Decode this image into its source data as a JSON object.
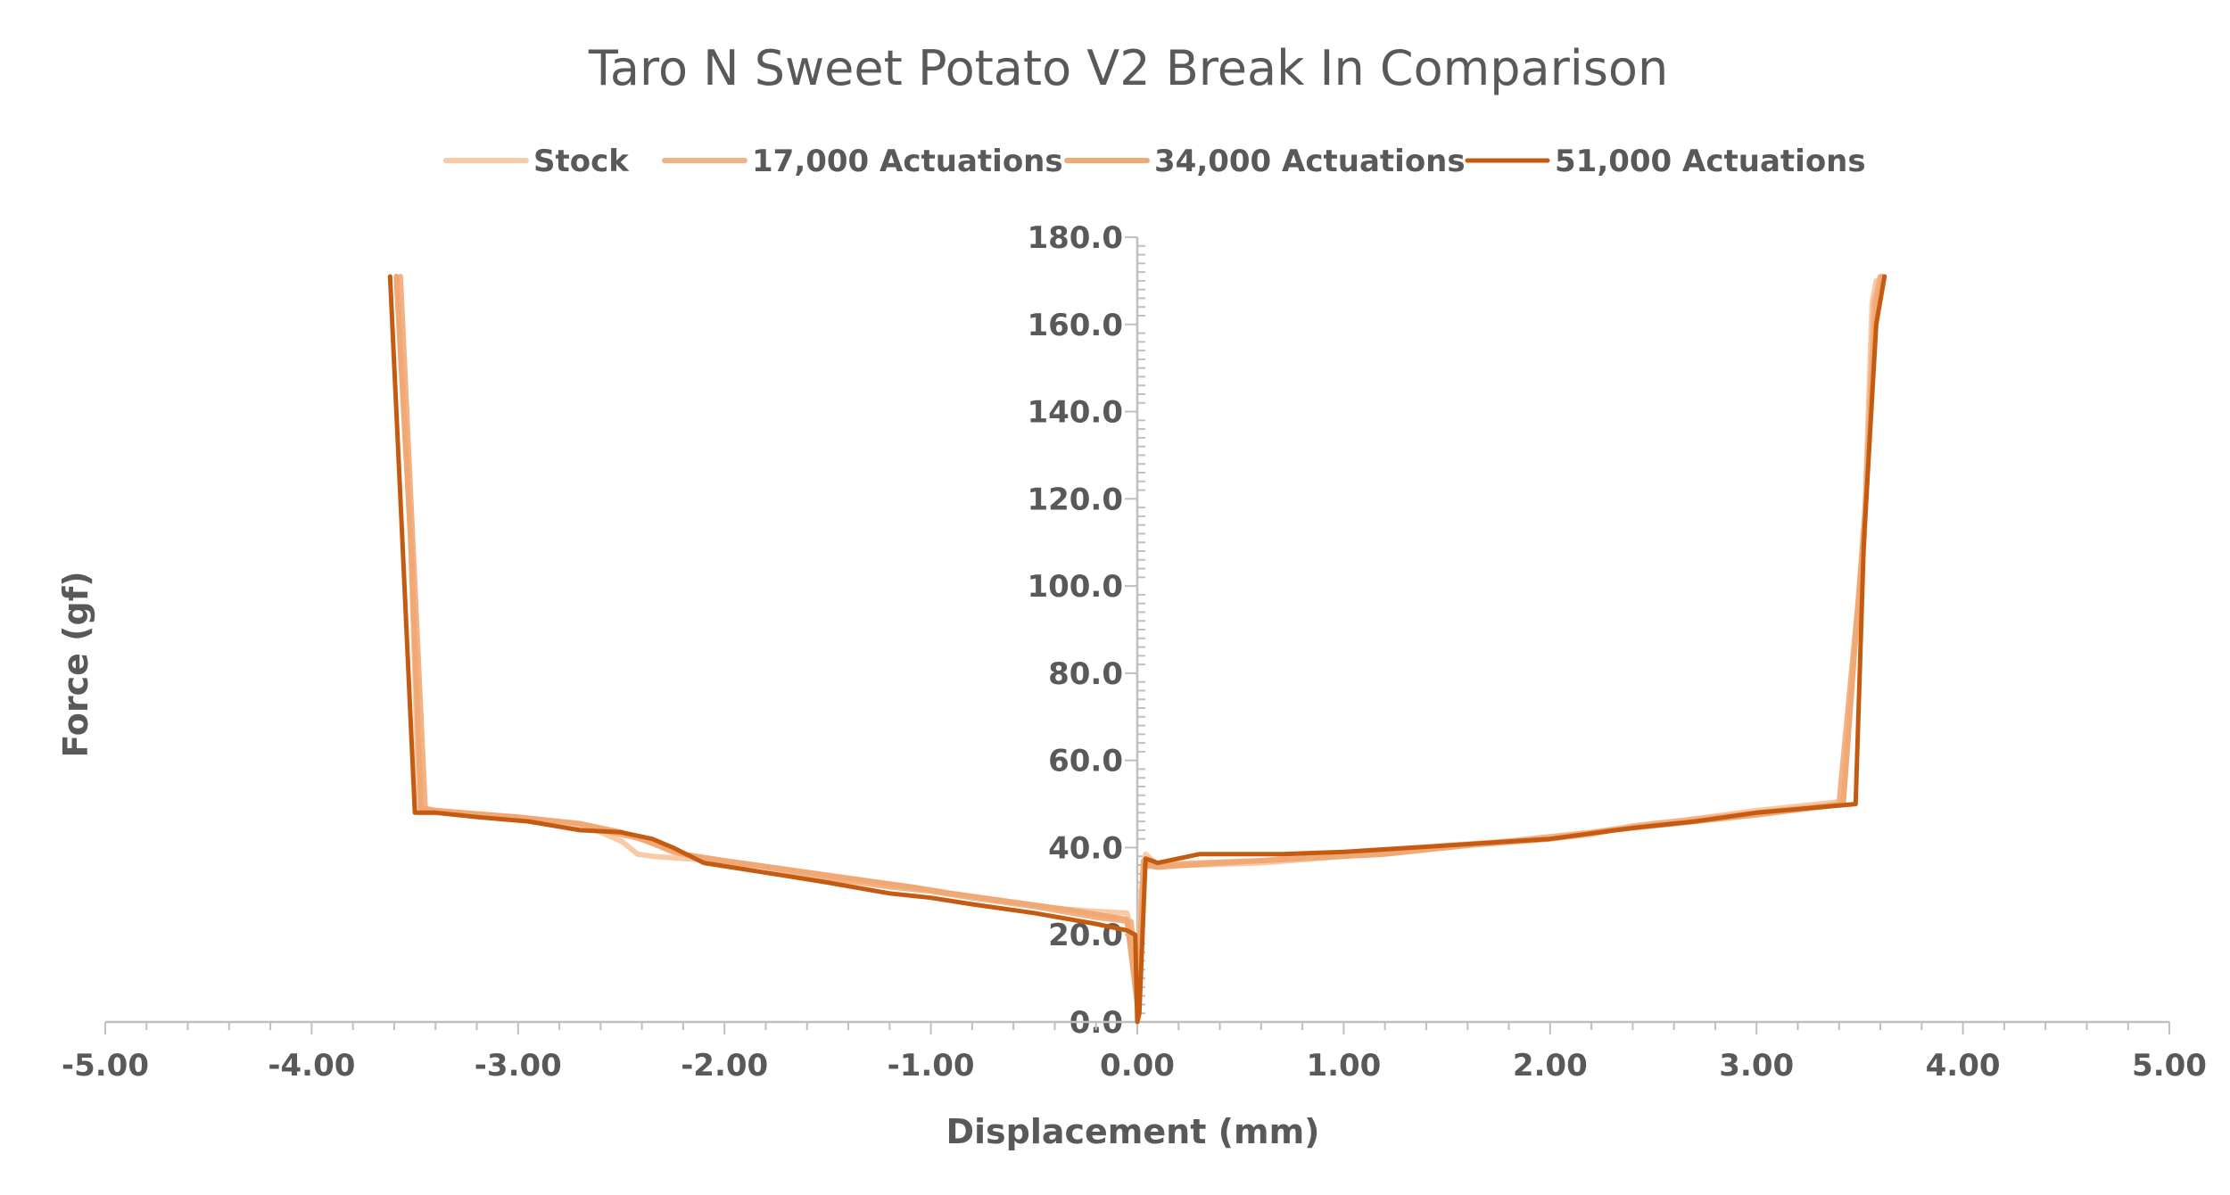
{
  "chart_data": {
    "type": "line",
    "title": "Taro N Sweet Potato V2 Break In Comparison",
    "xlabel": "Displacement (mm)",
    "ylabel": "Force (gf)",
    "xlim": [
      -5.0,
      5.0
    ],
    "ylim": [
      0.0,
      180.0
    ],
    "x_ticks": [
      -5.0,
      -4.0,
      -3.0,
      -2.0,
      -1.0,
      0.0,
      1.0,
      2.0,
      3.0,
      4.0,
      5.0
    ],
    "x_tick_labels": [
      "-5.00",
      "-4.00",
      "-3.00",
      "-2.00",
      "-1.00",
      "0.00",
      "1.00",
      "2.00",
      "3.00",
      "4.00",
      "5.00"
    ],
    "y_ticks": [
      0,
      20,
      40,
      60,
      80,
      100,
      120,
      140,
      160,
      180
    ],
    "y_tick_labels": [
      "0.0",
      "20.0",
      "40.0",
      "60.0",
      "80.0",
      "100.0",
      "120.0",
      "140.0",
      "160.0",
      "180.0"
    ],
    "grid": false,
    "legend_position": "top",
    "series": [
      {
        "name": "Stock",
        "color": "#f8cba6",
        "line_width": 6,
        "x": [
          -3.58,
          -3.52,
          -3.48,
          -3.4,
          -3.2,
          -2.9,
          -2.7,
          -2.6,
          -2.5,
          -2.42,
          -2.35,
          -2.2,
          -2.0,
          -1.8,
          -1.5,
          -1.2,
          -1.0,
          -0.8,
          -0.5,
          -0.25,
          -0.05,
          -0.02,
          0.0,
          0.02,
          0.04,
          0.1,
          0.3,
          0.6,
          1.0,
          1.5,
          1.8,
          2.0,
          2.2,
          2.4,
          2.6,
          3.0,
          3.4,
          3.52,
          3.56,
          3.58
        ],
        "y": [
          170.0,
          110.0,
          48.0,
          48.0,
          47.5,
          46.5,
          45.0,
          43.5,
          41.5,
          38.5,
          38.0,
          37.5,
          37.0,
          35.5,
          33.0,
          31.0,
          30.0,
          28.5,
          26.5,
          25.5,
          25.0,
          20.0,
          6.0,
          30.0,
          38.5,
          36.0,
          36.0,
          36.5,
          38.0,
          40.5,
          41.5,
          42.0,
          43.0,
          45.0,
          46.0,
          48.5,
          50.5,
          110.0,
          165.0,
          170.0
        ]
      },
      {
        "name": "17,000 Actuations",
        "color": "#f4b183",
        "line_width": 6,
        "x": [
          -3.57,
          -3.5,
          -3.45,
          -3.4,
          -3.0,
          -2.7,
          -2.6,
          -2.4,
          -2.25,
          -2.1,
          -1.8,
          -1.5,
          -1.2,
          -1.0,
          -0.8,
          -0.5,
          -0.2,
          -0.03,
          0.0,
          0.03,
          0.1,
          0.3,
          0.6,
          1.0,
          1.5,
          2.0,
          2.2,
          2.5,
          3.0,
          3.4,
          3.52,
          3.57,
          3.6
        ],
        "y": [
          171.0,
          100.0,
          49.0,
          48.5,
          47.0,
          45.5,
          44.0,
          42.0,
          39.0,
          37.5,
          35.5,
          33.0,
          31.0,
          30.0,
          28.5,
          26.5,
          24.0,
          23.0,
          5.0,
          37.0,
          36.0,
          36.5,
          37.0,
          38.5,
          40.0,
          42.5,
          43.5,
          45.5,
          48.0,
          50.0,
          110.0,
          165.0,
          171.0
        ]
      },
      {
        "name": "34,000 Actuations",
        "color": "#f0a875",
        "line_width": 6,
        "x": [
          -3.59,
          -3.52,
          -3.47,
          -3.4,
          -3.0,
          -2.7,
          -2.5,
          -2.35,
          -2.2,
          -2.0,
          -1.7,
          -1.4,
          -1.1,
          -0.9,
          -0.6,
          -0.3,
          -0.05,
          0.0,
          0.03,
          0.1,
          0.4,
          0.8,
          1.2,
          1.6,
          2.0,
          2.3,
          2.6,
          3.0,
          3.42,
          3.53,
          3.58,
          3.61
        ],
        "y": [
          171.0,
          110.0,
          49.0,
          48.5,
          47.0,
          45.5,
          43.5,
          41.0,
          38.5,
          37.0,
          35.0,
          33.0,
          31.0,
          29.5,
          27.5,
          25.5,
          23.5,
          4.0,
          36.0,
          35.5,
          36.5,
          37.5,
          38.5,
          40.5,
          42.0,
          44.0,
          45.5,
          47.5,
          50.0,
          120.0,
          165.0,
          171.0
        ]
      },
      {
        "name": "51,000 Actuations",
        "color": "#c55a11",
        "line_width": 5,
        "x": [
          -3.62,
          -3.56,
          -3.5,
          -3.4,
          -3.2,
          -2.95,
          -2.7,
          -2.5,
          -2.35,
          -2.25,
          -2.1,
          -1.9,
          -1.7,
          -1.5,
          -1.2,
          -1.0,
          -0.8,
          -0.5,
          -0.2,
          -0.05,
          -0.01,
          0.0,
          0.01,
          0.04,
          0.1,
          0.3,
          0.7,
          1.0,
          1.5,
          2.0,
          2.4,
          2.7,
          3.0,
          3.48,
          3.52,
          3.58,
          3.62
        ],
        "y": [
          171.0,
          110.0,
          48.0,
          48.0,
          47.0,
          46.0,
          44.0,
          43.5,
          42.0,
          40.0,
          36.5,
          35.0,
          33.5,
          32.0,
          29.5,
          28.5,
          27.0,
          25.0,
          22.5,
          21.0,
          20.0,
          0.0,
          2.0,
          37.5,
          36.5,
          38.5,
          38.5,
          39.0,
          40.5,
          42.0,
          44.5,
          46.0,
          48.0,
          50.0,
          110.0,
          160.0,
          171.0
        ]
      }
    ]
  }
}
